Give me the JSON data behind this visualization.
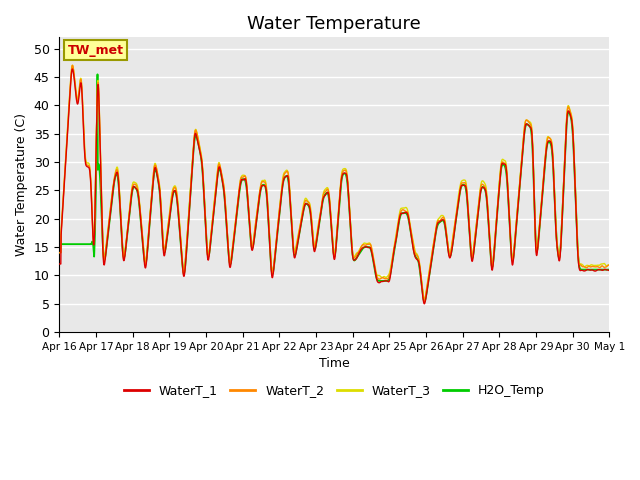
{
  "title": "Water Temperature",
  "xlabel": "Time",
  "ylabel": "Water Temperature (C)",
  "ylim": [
    0,
    52
  ],
  "yticks": [
    0,
    5,
    10,
    15,
    20,
    25,
    30,
    35,
    40,
    45,
    50
  ],
  "x_labels": [
    "Apr 16",
    "Apr 17",
    "Apr 18",
    "Apr 19",
    "Apr 20",
    "Apr 21",
    "Apr 22",
    "Apr 23",
    "Apr 24",
    "Apr 25",
    "Apr 26",
    "Apr 27",
    "Apr 28",
    "Apr 29",
    "Apr 30",
    "May 1"
  ],
  "annotation_text": "TW_met",
  "annotation_color": "#cc0000",
  "annotation_bg": "#ffff99",
  "background_color": "#e8e8e8",
  "colors": {
    "WaterT_1": "#dd0000",
    "WaterT_2": "#ff8800",
    "WaterT_3": "#dddd00",
    "H2O_Temp": "#00cc00"
  },
  "title_fontsize": 13,
  "peaks": [
    {
      "t": 0.0,
      "v": 12
    },
    {
      "t": 0.35,
      "v": 48
    },
    {
      "t": 0.5,
      "v": 39
    },
    {
      "t": 0.6,
      "v": 46
    },
    {
      "t": 0.7,
      "v": 29
    },
    {
      "t": 0.85,
      "v": 29
    },
    {
      "t": 0.95,
      "v": 10
    },
    {
      "t": 1.05,
      "v": 50
    },
    {
      "t": 1.2,
      "v": 10
    },
    {
      "t": 1.5,
      "v": 27
    },
    {
      "t": 1.6,
      "v": 29
    },
    {
      "t": 1.75,
      "v": 11
    },
    {
      "t": 2.0,
      "v": 26
    },
    {
      "t": 2.15,
      "v": 25
    },
    {
      "t": 2.35,
      "v": 10
    },
    {
      "t": 2.6,
      "v": 30
    },
    {
      "t": 2.75,
      "v": 25
    },
    {
      "t": 2.85,
      "v": 12
    },
    {
      "t": 3.1,
      "v": 25
    },
    {
      "t": 3.2,
      "v": 25
    },
    {
      "t": 3.4,
      "v": 8
    },
    {
      "t": 3.7,
      "v": 36
    },
    {
      "t": 3.9,
      "v": 30
    },
    {
      "t": 4.05,
      "v": 11
    },
    {
      "t": 4.35,
      "v": 30
    },
    {
      "t": 4.5,
      "v": 25
    },
    {
      "t": 4.65,
      "v": 10
    },
    {
      "t": 4.95,
      "v": 27
    },
    {
      "t": 5.1,
      "v": 27
    },
    {
      "t": 5.25,
      "v": 13
    },
    {
      "t": 5.5,
      "v": 26
    },
    {
      "t": 5.65,
      "v": 26
    },
    {
      "t": 5.8,
      "v": 8
    },
    {
      "t": 6.1,
      "v": 27
    },
    {
      "t": 6.25,
      "v": 28
    },
    {
      "t": 6.4,
      "v": 12
    },
    {
      "t": 6.7,
      "v": 23
    },
    {
      "t": 6.85,
      "v": 22
    },
    {
      "t": 6.95,
      "v": 13
    },
    {
      "t": 7.2,
      "v": 24
    },
    {
      "t": 7.35,
      "v": 25
    },
    {
      "t": 7.5,
      "v": 11
    },
    {
      "t": 7.7,
      "v": 28
    },
    {
      "t": 7.85,
      "v": 28
    },
    {
      "t": 8.0,
      "v": 12
    },
    {
      "t": 8.3,
      "v": 15
    },
    {
      "t": 8.5,
      "v": 15
    },
    {
      "t": 8.65,
      "v": 9
    },
    {
      "t": 9.0,
      "v": 9
    },
    {
      "t": 9.3,
      "v": 21
    },
    {
      "t": 9.5,
      "v": 21
    },
    {
      "t": 9.7,
      "v": 13
    },
    {
      "t": 9.8,
      "v": 13
    },
    {
      "t": 9.95,
      "v": 4
    },
    {
      "t": 10.3,
      "v": 19
    },
    {
      "t": 10.5,
      "v": 20
    },
    {
      "t": 10.65,
      "v": 12
    },
    {
      "t": 10.95,
      "v": 26
    },
    {
      "t": 11.1,
      "v": 26
    },
    {
      "t": 11.25,
      "v": 11
    },
    {
      "t": 11.5,
      "v": 26
    },
    {
      "t": 11.65,
      "v": 25
    },
    {
      "t": 11.8,
      "v": 9
    },
    {
      "t": 12.05,
      "v": 30
    },
    {
      "t": 12.2,
      "v": 29
    },
    {
      "t": 12.35,
      "v": 10
    },
    {
      "t": 12.7,
      "v": 37
    },
    {
      "t": 12.9,
      "v": 36
    },
    {
      "t": 13.0,
      "v": 11
    },
    {
      "t": 13.3,
      "v": 34
    },
    {
      "t": 13.45,
      "v": 33
    },
    {
      "t": 13.55,
      "v": 16
    },
    {
      "t": 13.65,
      "v": 11
    },
    {
      "t": 13.85,
      "v": 40
    },
    {
      "t": 14.0,
      "v": 37
    },
    {
      "t": 14.15,
      "v": 11
    },
    {
      "t": 15.0,
      "v": 11
    }
  ]
}
